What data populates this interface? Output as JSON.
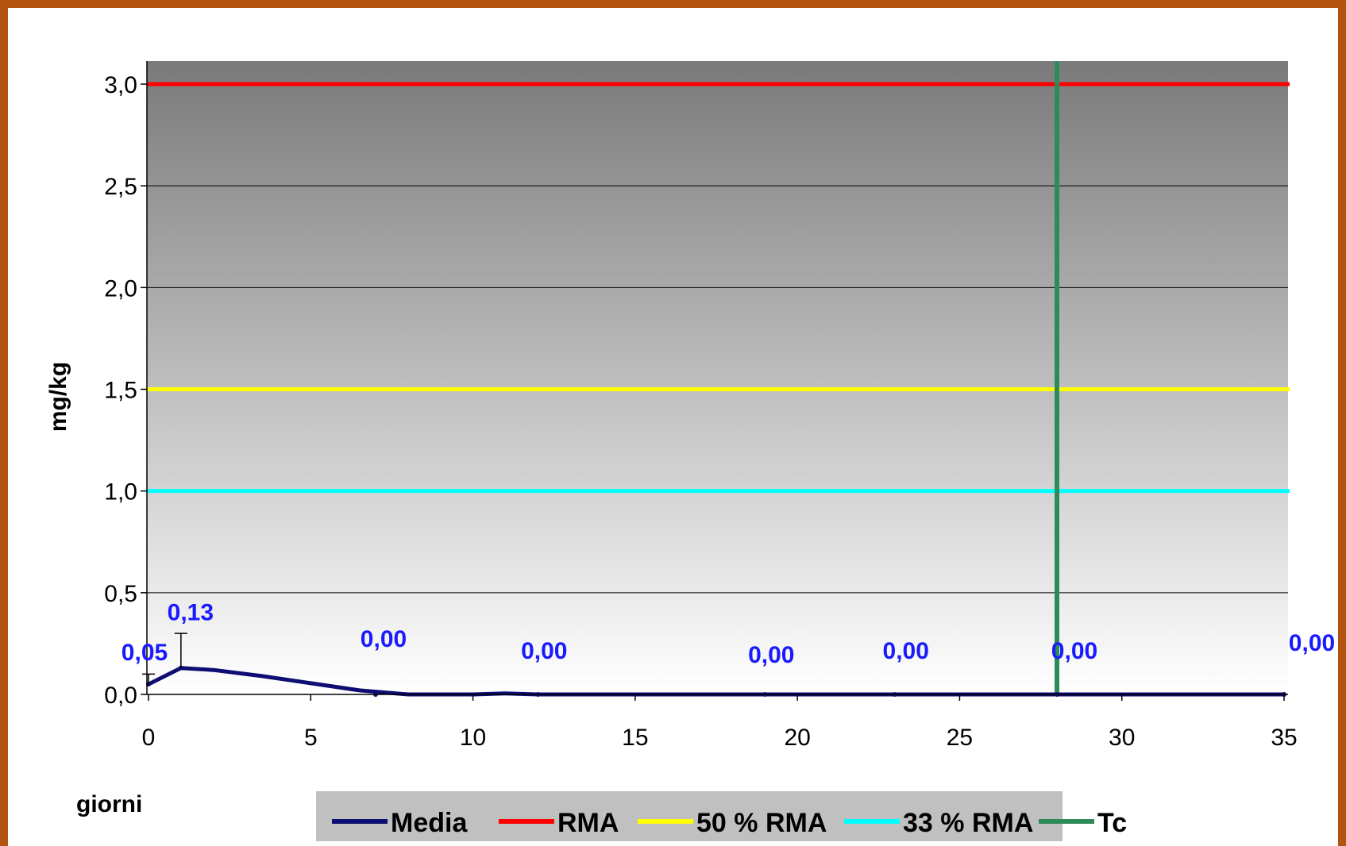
{
  "chart_data": {
    "type": "line",
    "xlabel": "giorni",
    "ylabel": "mg/kg",
    "xlim": [
      0,
      35
    ],
    "ylim": [
      0,
      3
    ],
    "x_ticks": [
      "0",
      "5",
      "10",
      "15",
      "20",
      "25",
      "30",
      "35"
    ],
    "y_ticks": [
      "0,0",
      "0,5",
      "1,0",
      "1,5",
      "2,0",
      "2,5",
      "3,0"
    ],
    "grid": "horizontal",
    "legend_position": "bottom",
    "colors": {
      "Media": "#0d0d73",
      "RMA": "#ff0000",
      "50 % RMA": "#ffff00",
      "33 % RMA": "#00ffff",
      "Tc": "#2e8b57"
    },
    "series": [
      {
        "name": "Media",
        "curve": [
          [
            0,
            0.05
          ],
          [
            1,
            0.13
          ],
          [
            2,
            0.12
          ],
          [
            3.5,
            0.09
          ],
          [
            5,
            0.055
          ],
          [
            6.5,
            0.02
          ],
          [
            8,
            0.0
          ],
          [
            10,
            0.0
          ],
          [
            11,
            0.005
          ],
          [
            12,
            0.0
          ],
          [
            19,
            0.0
          ],
          [
            23,
            0.0
          ],
          [
            28,
            0.0
          ],
          [
            35,
            0.0
          ]
        ],
        "points": [
          {
            "x": 0,
            "y": 0.05,
            "label": "0,05",
            "err": 0.1
          },
          {
            "x": 1,
            "y": 0.13,
            "label": "0,13",
            "err": 0.3
          },
          {
            "x": 7,
            "y": 0.0,
            "label": "0,00"
          },
          {
            "x": 12,
            "y": 0.0,
            "label": "0,00"
          },
          {
            "x": 19,
            "y": 0.0,
            "label": "0,00"
          },
          {
            "x": 23,
            "y": 0.0,
            "label": "0,00"
          },
          {
            "x": 28,
            "y": 0.0,
            "label": "0,00"
          },
          {
            "x": 35,
            "y": 0.0,
            "label": "0,00"
          }
        ]
      },
      {
        "name": "RMA",
        "y": 3.0
      },
      {
        "name": "50 % RMA",
        "y": 1.5
      },
      {
        "name": "33 % RMA",
        "y": 1.0
      },
      {
        "name": "Tc",
        "x": 28
      }
    ]
  }
}
